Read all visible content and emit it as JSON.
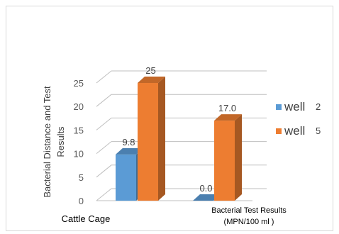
{
  "chart_data": {
    "type": "bar",
    "style": "3d-clustered-column",
    "title": "",
    "ylabel_lines": [
      "Bacterial Distance and Test",
      "Results"
    ],
    "xlabel": "",
    "categories": [
      {
        "lines": [
          "Cattle Cage"
        ]
      },
      {
        "lines": [
          "Bacterial Test Results",
          "(MPN/100 ml )"
        ]
      }
    ],
    "series": [
      {
        "name": "well",
        "suffix": "2",
        "color": "#5b9bd5",
        "values": [
          9.8,
          0.0
        ],
        "labels": [
          "9.8",
          "0.0"
        ]
      },
      {
        "name": "well",
        "suffix": "5",
        "color": "#ed7d31",
        "values": [
          25,
          17.0
        ],
        "labels": [
          "25",
          "17.0"
        ]
      }
    ],
    "ylim": [
      0,
      25
    ],
    "yticks": [
      "0",
      "5",
      "10",
      "15",
      "20",
      "25"
    ],
    "grid": true,
    "legend_position": "right"
  }
}
